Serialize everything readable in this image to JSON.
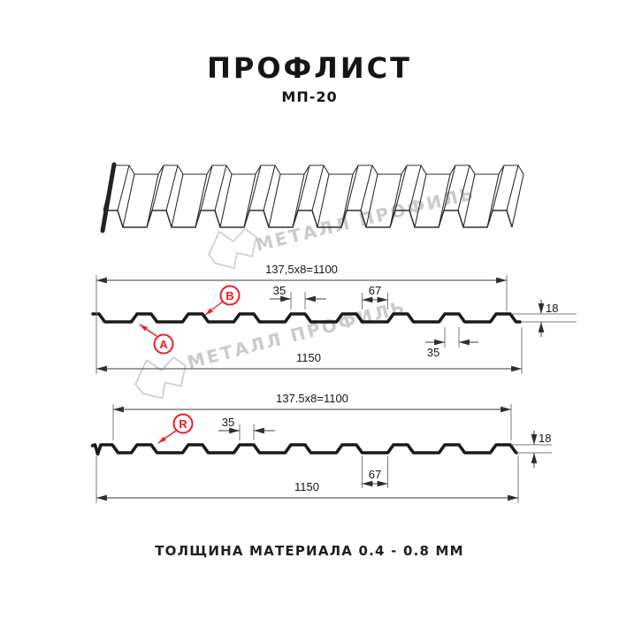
{
  "header": {
    "title": "ПРОФЛИСТ",
    "subtitle": "МП-20"
  },
  "watermark": {
    "brand": "МЕТАЛЛ ПРОФИЛЬ"
  },
  "diagram": {
    "front_view": {
      "label_a": "A",
      "label_b": "B",
      "dims": {
        "working_width": "137,5x8=1100",
        "overall_width": "1150",
        "rib_top_width": "35",
        "valley_width": "67",
        "profile_height": "18",
        "rib_bottom_width": "35"
      }
    },
    "reverse_view": {
      "label_r": "R",
      "dims": {
        "working_width": "137.5x8=1100",
        "overall_width": "1150",
        "rib_top_width": "35",
        "valley_width": "67",
        "profile_height": "18"
      }
    }
  },
  "footer": {
    "material_note": "ТОЛЩИНА МАТЕРИАЛА 0.4 - 0.8 ММ"
  },
  "colors": {
    "accent_red": "#ee1d24",
    "line_black": "#1a1a1a",
    "watermark_gray": "#cbcbcb"
  }
}
